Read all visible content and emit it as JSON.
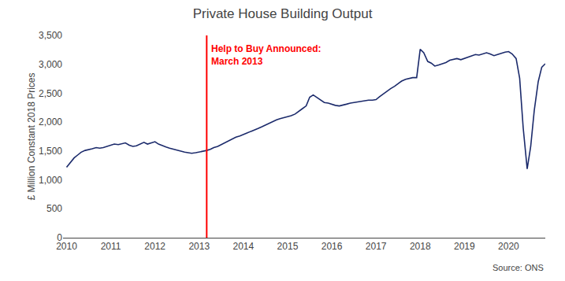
{
  "chart_data": {
    "type": "line",
    "title": "Private House Building Output",
    "ylabel": "£ Million Constant 2018 Prices",
    "source": "Source: ONS",
    "color": "#1B2A6B",
    "x": [
      2010.0,
      2010.08,
      2010.17,
      2010.25,
      2010.33,
      2010.42,
      2010.5,
      2010.58,
      2010.67,
      2010.75,
      2010.83,
      2010.92,
      2011.0,
      2011.08,
      2011.17,
      2011.25,
      2011.33,
      2011.42,
      2011.5,
      2011.58,
      2011.67,
      2011.75,
      2011.83,
      2011.92,
      2012.0,
      2012.08,
      2012.17,
      2012.25,
      2012.33,
      2012.42,
      2012.5,
      2012.58,
      2012.67,
      2012.75,
      2012.83,
      2012.92,
      2013.0,
      2013.08,
      2013.17,
      2013.25,
      2013.33,
      2013.42,
      2013.5,
      2013.58,
      2013.67,
      2013.75,
      2013.83,
      2013.92,
      2014.0,
      2014.08,
      2014.17,
      2014.25,
      2014.33,
      2014.42,
      2014.5,
      2014.58,
      2014.67,
      2014.75,
      2014.83,
      2014.92,
      2015.0,
      2015.08,
      2015.17,
      2015.25,
      2015.33,
      2015.42,
      2015.5,
      2015.58,
      2015.67,
      2015.75,
      2015.83,
      2015.92,
      2016.0,
      2016.08,
      2016.17,
      2016.25,
      2016.33,
      2016.42,
      2016.5,
      2016.58,
      2016.67,
      2016.75,
      2016.83,
      2016.92,
      2017.0,
      2017.08,
      2017.17,
      2017.25,
      2017.33,
      2017.42,
      2017.5,
      2017.58,
      2017.67,
      2017.75,
      2017.83,
      2017.92,
      2018.0,
      2018.08,
      2018.17,
      2018.25,
      2018.33,
      2018.42,
      2018.5,
      2018.58,
      2018.67,
      2018.75,
      2018.83,
      2018.92,
      2019.0,
      2019.08,
      2019.17,
      2019.25,
      2019.33,
      2019.42,
      2019.5,
      2019.58,
      2019.67,
      2019.75,
      2019.83,
      2019.92,
      2020.0,
      2020.08,
      2020.17,
      2020.25,
      2020.33,
      2020.42,
      2020.5,
      2020.58,
      2020.67,
      2020.75,
      2020.83
    ],
    "values": [
      1220,
      1300,
      1380,
      1430,
      1480,
      1510,
      1530,
      1540,
      1560,
      1550,
      1560,
      1580,
      1600,
      1620,
      1610,
      1620,
      1640,
      1600,
      1580,
      1590,
      1620,
      1650,
      1620,
      1640,
      1660,
      1620,
      1590,
      1570,
      1550,
      1530,
      1510,
      1490,
      1480,
      1470,
      1460,
      1470,
      1480,
      1490,
      1510,
      1530,
      1560,
      1580,
      1610,
      1650,
      1680,
      1710,
      1740,
      1760,
      1780,
      1810,
      1840,
      1870,
      1890,
      1920,
      1950,
      1980,
      2010,
      2040,
      2060,
      2080,
      2090,
      2110,
      2140,
      2180,
      2230,
      2280,
      2430,
      2470,
      2420,
      2380,
      2340,
      2330,
      2310,
      2290,
      2280,
      2290,
      2310,
      2330,
      2340,
      2350,
      2360,
      2370,
      2380,
      2380,
      2390,
      2440,
      2490,
      2540,
      2580,
      2620,
      2670,
      2710,
      2740,
      2760,
      2770,
      2770,
      3260,
      3200,
      3050,
      3020,
      2970,
      2990,
      3010,
      3030,
      3070,
      3090,
      3100,
      3080,
      3100,
      3130,
      3150,
      3170,
      3160,
      3180,
      3200,
      3180,
      3150,
      3170,
      3190,
      3210,
      3220,
      3180,
      3100,
      2760,
      1900,
      1190,
      1580,
      2200,
      2700,
      2950,
      3010
    ],
    "vlines": [
      {
        "x": 2013.17,
        "color": "#FF0000"
      }
    ],
    "annotations": [
      {
        "text": "Help to Buy Announced:\nMarch 2013",
        "color": "#FF0000"
      }
    ],
    "xlim": [
      2009.92,
      2020.83
    ],
    "ylim": [
      0,
      3500
    ],
    "xticks": [
      2010,
      2011,
      2012,
      2013,
      2014,
      2015,
      2016,
      2017,
      2018,
      2019,
      2020
    ],
    "yticks": [
      0,
      500,
      {
        "value": 1000,
        "label": "1,000"
      },
      {
        "value": 1500,
        "label": "1,500"
      },
      {
        "value": 2000,
        "label": "2,000"
      },
      {
        "value": 2500,
        "label": "2,500"
      },
      {
        "value": 3000,
        "label": "3,000"
      },
      {
        "value": 3500,
        "label": "3,500"
      }
    ],
    "grid": false
  }
}
